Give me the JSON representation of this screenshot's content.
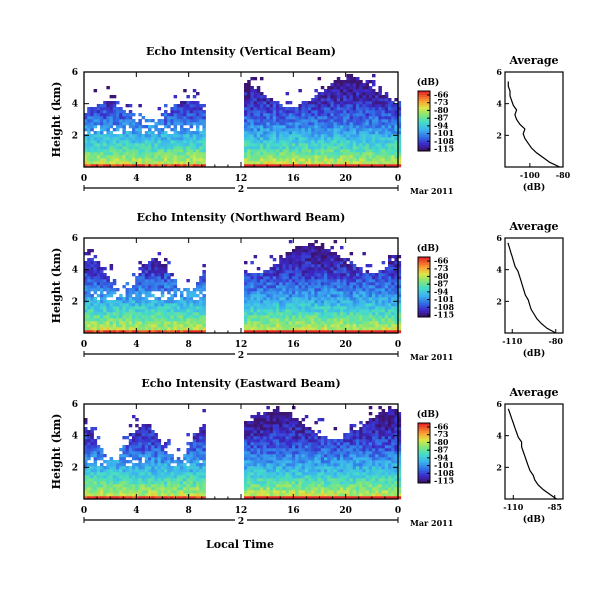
{
  "figure": {
    "xlabel": "Local Time",
    "date_suffix": "Mar 2011"
  },
  "chart_data": [
    {
      "type": "heatmap",
      "title": "Echo Intensity (Vertical Beam)",
      "ylabel": "Height (km)",
      "xlabel": "Local Time",
      "x_ticks": [
        "0",
        "4",
        "8",
        "12",
        "16",
        "20",
        "0"
      ],
      "y_ticks": [
        "2",
        "4",
        "6"
      ],
      "day_label": "2",
      "date_label": "Mar 2011",
      "xlim": [
        0,
        24
      ],
      "ylim": [
        0,
        6
      ],
      "data_gap_hours": [
        9.2,
        12.0
      ],
      "colorbar": {
        "unit": "(dB)",
        "ticks": [
          "-66",
          "-73",
          "-80",
          "-87",
          "-94",
          "-101",
          "-108",
          "-115"
        ],
        "range": [
          -115,
          -66
        ]
      },
      "profile": {
        "title": "Average",
        "xlabel": "(dB)",
        "x_ticks": [
          "-100",
          "-80"
        ],
        "xlim": [
          -115,
          -80
        ],
        "y_ticks": [
          "2",
          "4",
          "6"
        ],
        "ylim": [
          0,
          6
        ],
        "heights": [
          0.0,
          0.3,
          0.6,
          0.9,
          1.2,
          1.5,
          1.8,
          2.1,
          2.4,
          2.7,
          3.0,
          3.3,
          3.6,
          3.9,
          4.2,
          4.5,
          4.8,
          5.1,
          5.4
        ],
        "values": [
          -82,
          -88,
          -92,
          -96,
          -99,
          -101,
          -103,
          -104,
          -103,
          -106,
          -108,
          -109,
          -108,
          -110,
          -111,
          -112,
          -112,
          -113,
          -113
        ]
      }
    },
    {
      "type": "heatmap",
      "title": "Echo Intensity (Northward Beam)",
      "ylabel": "Height (km)",
      "xlabel": "Local Time",
      "x_ticks": [
        "0",
        "4",
        "8",
        "12",
        "16",
        "20",
        "0"
      ],
      "y_ticks": [
        "2",
        "4",
        "6"
      ],
      "day_label": "2",
      "date_label": "Mar 2011",
      "xlim": [
        0,
        24
      ],
      "ylim": [
        0,
        6
      ],
      "data_gap_hours": [
        9.2,
        12.0
      ],
      "colorbar": {
        "unit": "(dB)",
        "ticks": [
          "-66",
          "-73",
          "-80",
          "-87",
          "-94",
          "-101",
          "-108",
          "-115"
        ],
        "range": [
          -115,
          -66
        ]
      },
      "profile": {
        "title": "Average",
        "xlabel": "(dB)",
        "x_ticks": [
          "-110",
          "-80"
        ],
        "xlim": [
          -115,
          -75
        ],
        "y_ticks": [
          "2",
          "4",
          "6"
        ],
        "ylim": [
          0,
          6
        ],
        "heights": [
          0.0,
          0.3,
          0.6,
          0.9,
          1.2,
          1.5,
          1.8,
          2.1,
          2.4,
          2.7,
          3.0,
          3.3,
          3.6,
          3.9,
          4.2,
          4.5,
          4.8,
          5.1,
          5.4,
          5.7
        ],
        "values": [
          -80,
          -86,
          -90,
          -93,
          -95,
          -97,
          -98,
          -99,
          -101,
          -102,
          -103,
          -104,
          -105,
          -106,
          -108,
          -109,
          -110,
          -111,
          -112,
          -113
        ]
      }
    },
    {
      "type": "heatmap",
      "title": "Echo Intensity (Eastward Beam)",
      "ylabel": "Height (km)",
      "xlabel": "Local Time",
      "x_ticks": [
        "0",
        "4",
        "8",
        "12",
        "16",
        "20",
        "0"
      ],
      "y_ticks": [
        "2",
        "4",
        "6"
      ],
      "day_label": "2",
      "date_label": "Mar 2011",
      "xlim": [
        0,
        24
      ],
      "ylim": [
        0,
        6
      ],
      "data_gap_hours": [
        9.2,
        12.0
      ],
      "colorbar": {
        "unit": "(dB)",
        "ticks": [
          "-66",
          "-73",
          "-80",
          "-87",
          "-94",
          "-101",
          "-108",
          "-115"
        ],
        "range": [
          -115,
          -66
        ]
      },
      "profile": {
        "title": "Average",
        "xlabel": "(dB)",
        "x_ticks": [
          "-110",
          "-85"
        ],
        "xlim": [
          -115,
          -80
        ],
        "y_ticks": [
          "2",
          "4",
          "6"
        ],
        "ylim": [
          0,
          6
        ],
        "heights": [
          0.0,
          0.3,
          0.6,
          0.9,
          1.2,
          1.5,
          1.8,
          2.1,
          2.4,
          2.7,
          3.0,
          3.3,
          3.6,
          3.9,
          4.2,
          4.5,
          4.8,
          5.1,
          5.4,
          5.7
        ],
        "values": [
          -84,
          -88,
          -92,
          -95,
          -97,
          -98,
          -100,
          -101,
          -102,
          -103,
          -104,
          -105,
          -105,
          -107,
          -108,
          -109,
          -110,
          -111,
          -112,
          -113
        ]
      }
    }
  ]
}
